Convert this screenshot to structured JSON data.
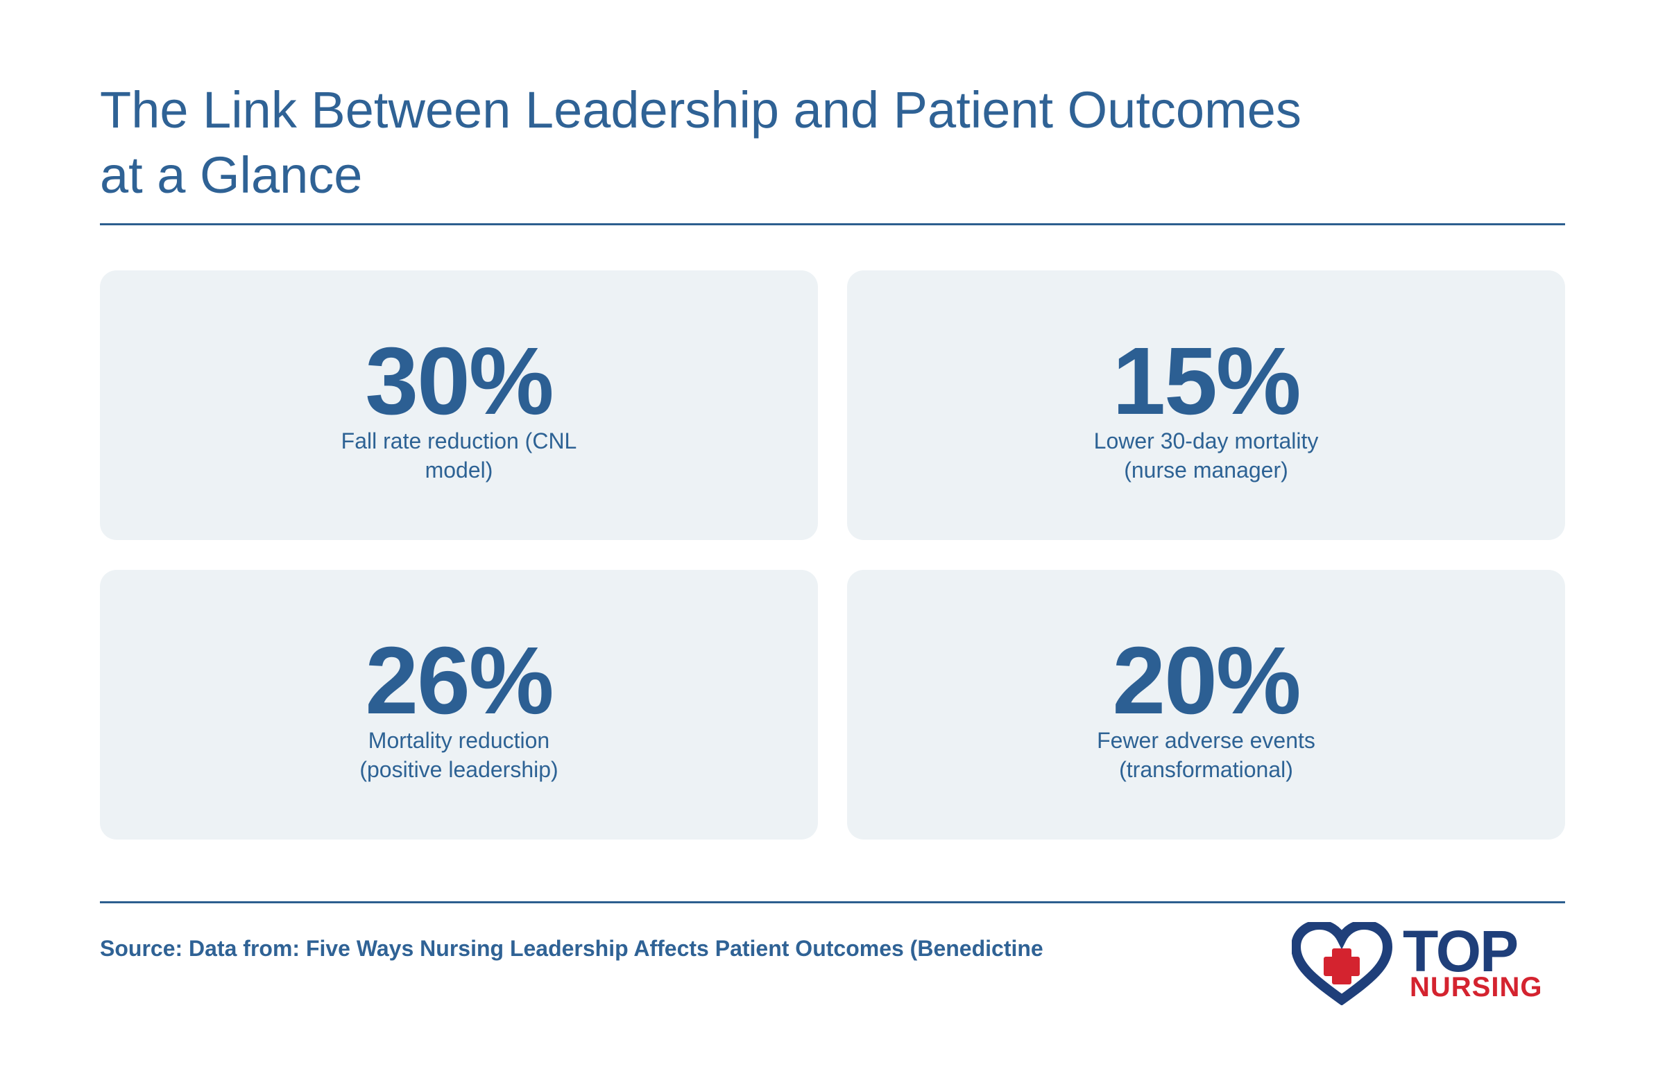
{
  "header": {
    "title_lines": [
      "The Link Between Leadership and Patient Outcomes",
      "at a Glance"
    ]
  },
  "stats": [
    {
      "value": "30%",
      "label": "Fall rate reduction (CNL model)"
    },
    {
      "value": "15%",
      "label": "Lower 30-day mortality (nurse manager)"
    },
    {
      "value": "26%",
      "label": "Mortality reduction (positive leadership)"
    },
    {
      "value": "20%",
      "label": "Fewer adverse events (transformational)"
    }
  ],
  "footer": {
    "source": "Source: Data from: Five Ways Nursing Leadership Affects Patient Outcomes (Benedictine"
  },
  "logo": {
    "top": "TOP",
    "nursing": "NURSING"
  }
}
